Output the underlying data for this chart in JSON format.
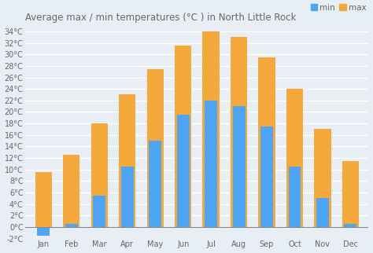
{
  "title": "Average max / min temperatures (°C ) in North Little Rock",
  "months": [
    "Jan",
    "Feb",
    "Mar",
    "Apr",
    "May",
    "Jun",
    "Jul",
    "Aug",
    "Sep",
    "Oct",
    "Nov",
    "Dec"
  ],
  "min_temps": [
    -1.5,
    0.5,
    5.5,
    10.5,
    15.0,
    19.5,
    22.0,
    21.0,
    17.5,
    10.5,
    5.0,
    0.5
  ],
  "max_temps": [
    9.5,
    12.5,
    18.0,
    23.0,
    27.5,
    31.5,
    34.0,
    33.0,
    29.5,
    24.0,
    17.0,
    11.5
  ],
  "min_color": "#4da6f5",
  "max_color": "#f5a93a",
  "bg_color": "#e8eef5",
  "grid_color": "#ffffff",
  "ylim": [
    -2,
    35
  ],
  "yticks": [
    -2,
    0,
    2,
    4,
    6,
    8,
    10,
    12,
    14,
    16,
    18,
    20,
    22,
    24,
    26,
    28,
    30,
    32,
    34
  ],
  "title_fontsize": 8.5,
  "tick_fontsize": 7,
  "legend_fontsize": 7.5
}
